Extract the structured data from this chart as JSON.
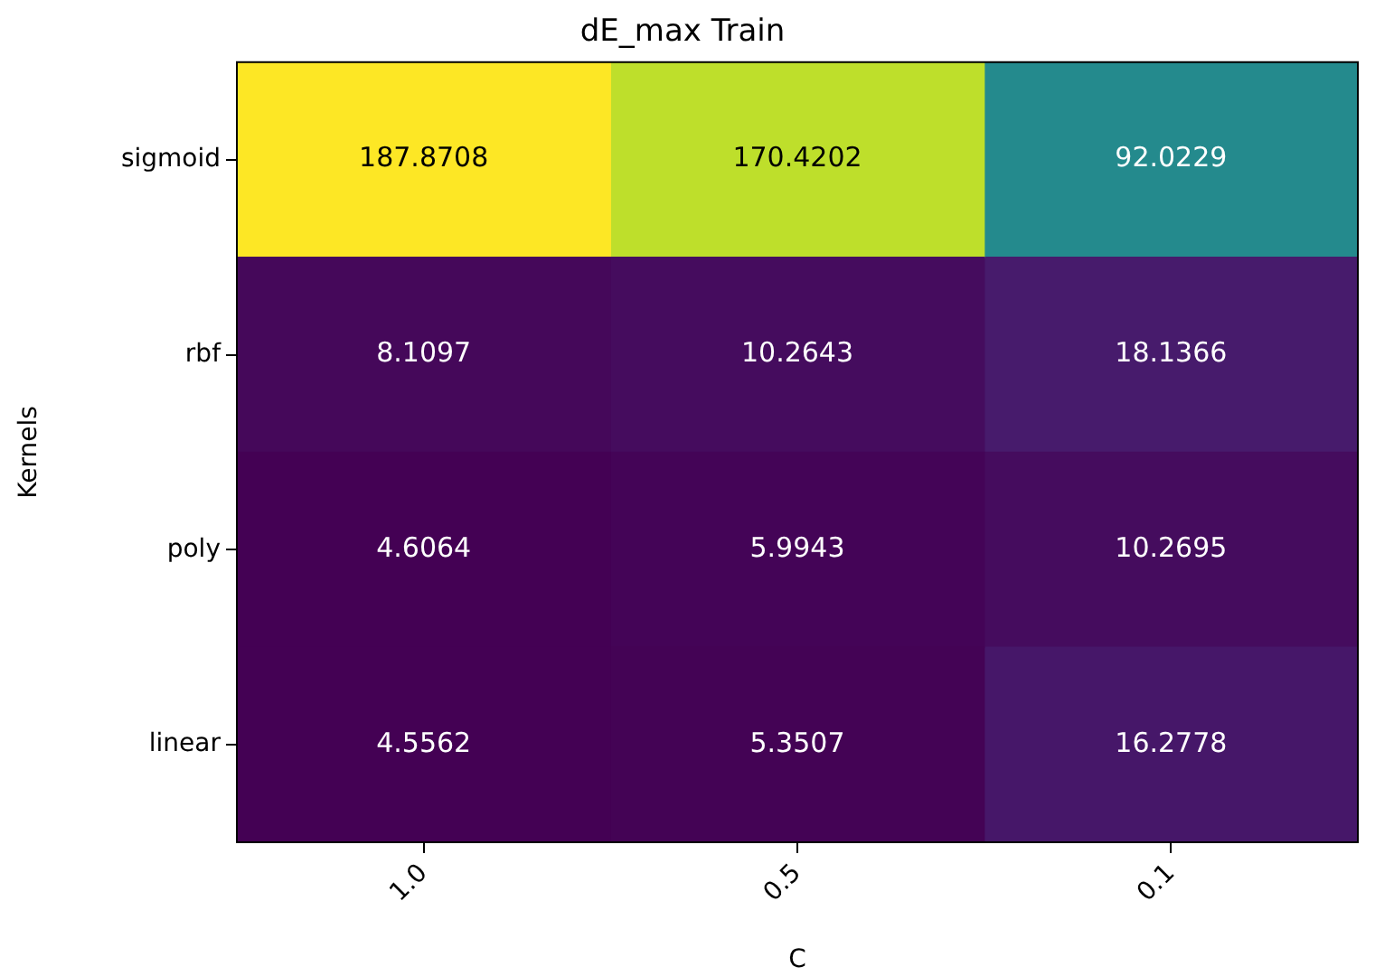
{
  "chart_data": {
    "type": "heatmap",
    "title": "dE_max Train",
    "xlabel": "C",
    "ylabel": "Kernels",
    "categories": [
      "1.0",
      "0.5",
      "0.1"
    ],
    "y_categories": [
      "sigmoid",
      "rbf",
      "poly",
      "linear"
    ],
    "cells": [
      [
        187.8708,
        170.4202,
        92.0229
      ],
      [
        8.1097,
        10.2643,
        18.1366
      ],
      [
        4.6064,
        5.9943,
        10.2695
      ],
      [
        4.5562,
        5.3507,
        16.2778
      ]
    ],
    "data_labels": true
  }
}
